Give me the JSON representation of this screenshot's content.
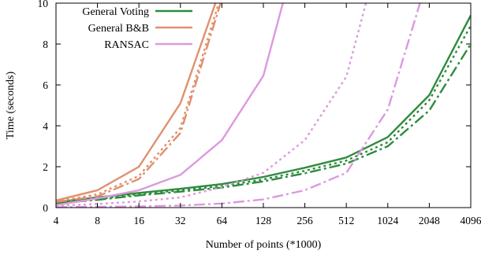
{
  "chart_data": {
    "type": "line",
    "title": "",
    "xlabel": "Number of points (*1000)",
    "ylabel": "Time (seconds)",
    "xscale": "log2",
    "categories": [
      "4",
      "8",
      "16",
      "32",
      "64",
      "128",
      "256",
      "512",
      "1024",
      "2048",
      "4096"
    ],
    "x": [
      4,
      8,
      16,
      32,
      64,
      128,
      256,
      512,
      1024,
      2048,
      4096
    ],
    "ylim": [
      0,
      10
    ],
    "yticks": [
      "0",
      "2",
      "4",
      "6",
      "8",
      "10"
    ],
    "ytick_values": [
      0,
      2,
      4,
      6,
      8,
      10
    ],
    "grid": false,
    "legend_placement": "top-left",
    "legend": [
      {
        "label": "General Voting",
        "color": "#2e8b3e"
      },
      {
        "label": "General B&B",
        "color": "#e0906e"
      },
      {
        "label": "RANSAC",
        "color": "#dd99dd"
      }
    ],
    "series": [
      {
        "group": 0,
        "dash": "solid",
        "color": "#2e8b3e",
        "values": [
          0.25,
          0.5,
          0.72,
          0.92,
          1.15,
          1.5,
          1.95,
          2.45,
          3.45,
          5.5,
          9.4
        ]
      },
      {
        "group": 0,
        "dash": "dotted",
        "color": "#2e8b3e",
        "values": [
          0.22,
          0.42,
          0.65,
          0.85,
          1.05,
          1.38,
          1.8,
          2.3,
          3.2,
          5.25,
          8.9
        ]
      },
      {
        "group": 0,
        "dash": "dashdot",
        "color": "#2e8b3e",
        "values": [
          0.2,
          0.38,
          0.6,
          0.78,
          0.98,
          1.28,
          1.68,
          2.15,
          3.0,
          4.75,
          8.0
        ]
      },
      {
        "group": 1,
        "dash": "solid",
        "color": "#e0906e",
        "values": [
          0.35,
          0.85,
          2.0,
          5.1,
          10.9,
          null,
          null,
          null,
          null,
          null,
          null
        ]
      },
      {
        "group": 1,
        "dash": "dotted",
        "color": "#e0906e",
        "values": [
          0.3,
          0.65,
          1.55,
          3.9,
          10.5,
          null,
          null,
          null,
          null,
          null,
          null
        ]
      },
      {
        "group": 1,
        "dash": "dashdot",
        "color": "#e0906e",
        "values": [
          0.28,
          0.55,
          1.4,
          3.65,
          10.2,
          null,
          null,
          null,
          null,
          null,
          null
        ]
      },
      {
        "group": 2,
        "dash": "solid",
        "color": "#dd99dd",
        "values": [
          0.12,
          0.45,
          0.85,
          1.6,
          3.3,
          6.45,
          14.0,
          null,
          null,
          null,
          null
        ]
      },
      {
        "group": 2,
        "dash": "dotted",
        "color": "#dd99dd",
        "values": [
          0.08,
          0.18,
          0.3,
          0.5,
          1.0,
          1.7,
          3.3,
          6.4,
          14.0,
          null,
          null
        ]
      },
      {
        "group": 2,
        "dash": "dashdot",
        "color": "#dd99dd",
        "values": [
          0.02,
          0.04,
          0.06,
          0.1,
          0.2,
          0.4,
          0.85,
          1.7,
          4.8,
          11.5,
          null
        ]
      }
    ]
  }
}
